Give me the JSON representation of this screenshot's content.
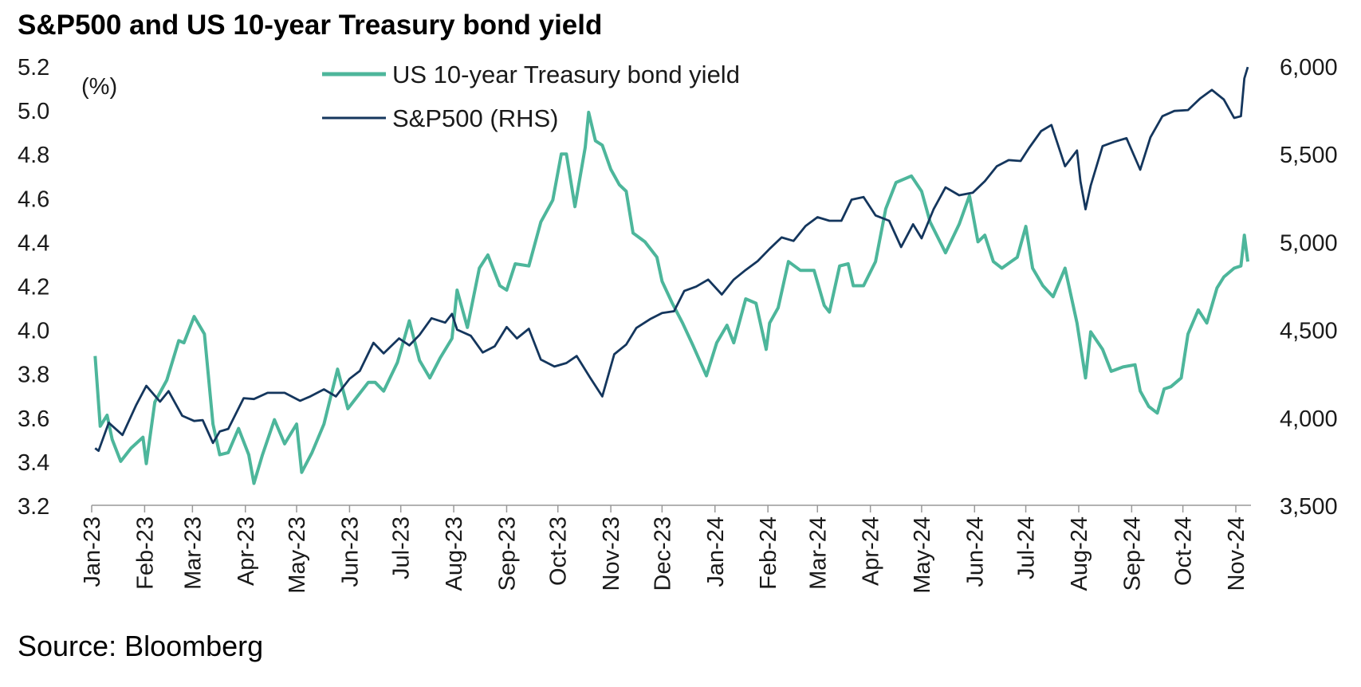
{
  "chart_data": {
    "type": "line",
    "title": "S&P500 and US 10-year Treasury bond yield",
    "source": "Source: Bloomberg",
    "left_axis": {
      "unit_label": "(%)",
      "ylim": [
        3.2,
        5.2
      ],
      "ticks": [
        "3.2",
        "3.4",
        "3.6",
        "3.8",
        "4.0",
        "4.2",
        "4.4",
        "4.6",
        "4.8",
        "5.0",
        "5.2"
      ]
    },
    "right_axis": {
      "ylim": [
        3500,
        6000
      ],
      "ticks": [
        "3,500",
        "4,000",
        "4,500",
        "5,000",
        "5,500",
        "6,000"
      ]
    },
    "x_axis": {
      "range": [
        "2023-01-01",
        "2024-11-08"
      ],
      "tick_labels": [
        "Jan-23",
        "Feb-23",
        "Mar-23",
        "Apr-23",
        "May-23",
        "Jun-23",
        "Jul-23",
        "Aug-23",
        "Sep-23",
        "Oct-23",
        "Nov-23",
        "Dec-23",
        "Jan-24",
        "Feb-24",
        "Mar-24",
        "Apr-24",
        "May-24",
        "Jun-24",
        "Jul-24",
        "Aug-24",
        "Sep-24",
        "Oct-24",
        "Nov-24"
      ],
      "tick_dates": [
        "2023-01-01",
        "2023-02-01",
        "2023-03-01",
        "2023-04-01",
        "2023-05-01",
        "2023-06-01",
        "2023-07-01",
        "2023-08-01",
        "2023-09-01",
        "2023-10-01",
        "2023-11-01",
        "2023-12-01",
        "2024-01-01",
        "2024-02-01",
        "2024-03-01",
        "2024-04-01",
        "2024-05-01",
        "2024-06-01",
        "2024-07-01",
        "2024-08-01",
        "2024-09-01",
        "2024-10-01",
        "2024-11-01"
      ]
    },
    "legend_placement": "top-center",
    "grid": false,
    "series": [
      {
        "name": "US 10-year Treasury bond yield",
        "axis": "left",
        "color": "#4db69b",
        "points": [
          [
            "2023-01-03",
            3.88
          ],
          [
            "2023-01-06",
            3.56
          ],
          [
            "2023-01-10",
            3.61
          ],
          [
            "2023-01-13",
            3.5
          ],
          [
            "2023-01-18",
            3.4
          ],
          [
            "2023-01-24",
            3.46
          ],
          [
            "2023-01-31",
            3.51
          ],
          [
            "2023-02-02",
            3.39
          ],
          [
            "2023-02-07",
            3.67
          ],
          [
            "2023-02-14",
            3.77
          ],
          [
            "2023-02-21",
            3.95
          ],
          [
            "2023-02-24",
            3.94
          ],
          [
            "2023-03-02",
            4.06
          ],
          [
            "2023-03-08",
            3.98
          ],
          [
            "2023-03-13",
            3.57
          ],
          [
            "2023-03-17",
            3.43
          ],
          [
            "2023-03-22",
            3.44
          ],
          [
            "2023-03-28",
            3.55
          ],
          [
            "2023-04-03",
            3.43
          ],
          [
            "2023-04-06",
            3.3
          ],
          [
            "2023-04-11",
            3.43
          ],
          [
            "2023-04-18",
            3.59
          ],
          [
            "2023-04-24",
            3.48
          ],
          [
            "2023-05-01",
            3.57
          ],
          [
            "2023-05-04",
            3.35
          ],
          [
            "2023-05-10",
            3.44
          ],
          [
            "2023-05-17",
            3.57
          ],
          [
            "2023-05-25",
            3.82
          ],
          [
            "2023-05-31",
            3.64
          ],
          [
            "2023-06-05",
            3.69
          ],
          [
            "2023-06-12",
            3.76
          ],
          [
            "2023-06-16",
            3.76
          ],
          [
            "2023-06-21",
            3.72
          ],
          [
            "2023-06-29",
            3.85
          ],
          [
            "2023-07-06",
            4.04
          ],
          [
            "2023-07-12",
            3.86
          ],
          [
            "2023-07-18",
            3.78
          ],
          [
            "2023-07-24",
            3.87
          ],
          [
            "2023-07-31",
            3.96
          ],
          [
            "2023-08-03",
            4.18
          ],
          [
            "2023-08-09",
            4.01
          ],
          [
            "2023-08-16",
            4.28
          ],
          [
            "2023-08-21",
            4.34
          ],
          [
            "2023-08-28",
            4.2
          ],
          [
            "2023-09-01",
            4.18
          ],
          [
            "2023-09-06",
            4.3
          ],
          [
            "2023-09-14",
            4.29
          ],
          [
            "2023-09-21",
            4.49
          ],
          [
            "2023-09-28",
            4.59
          ],
          [
            "2023-10-03",
            4.8
          ],
          [
            "2023-10-06",
            4.8
          ],
          [
            "2023-10-11",
            4.56
          ],
          [
            "2023-10-17",
            4.83
          ],
          [
            "2023-10-19",
            4.99
          ],
          [
            "2023-10-23",
            4.86
          ],
          [
            "2023-10-27",
            4.84
          ],
          [
            "2023-11-01",
            4.73
          ],
          [
            "2023-11-06",
            4.66
          ],
          [
            "2023-11-10",
            4.63
          ],
          [
            "2023-11-14",
            4.44
          ],
          [
            "2023-11-21",
            4.4
          ],
          [
            "2023-11-28",
            4.33
          ],
          [
            "2023-12-01",
            4.22
          ],
          [
            "2023-12-07",
            4.12
          ],
          [
            "2023-12-13",
            4.03
          ],
          [
            "2023-12-19",
            3.93
          ],
          [
            "2023-12-27",
            3.79
          ],
          [
            "2024-01-02",
            3.94
          ],
          [
            "2024-01-08",
            4.02
          ],
          [
            "2024-01-12",
            3.94
          ],
          [
            "2024-01-19",
            4.14
          ],
          [
            "2024-01-25",
            4.12
          ],
          [
            "2024-01-31",
            3.91
          ],
          [
            "2024-02-02",
            4.03
          ],
          [
            "2024-02-07",
            4.1
          ],
          [
            "2024-02-13",
            4.31
          ],
          [
            "2024-02-20",
            4.27
          ],
          [
            "2024-02-28",
            4.27
          ],
          [
            "2024-03-05",
            4.11
          ],
          [
            "2024-03-08",
            4.08
          ],
          [
            "2024-03-14",
            4.29
          ],
          [
            "2024-03-19",
            4.3
          ],
          [
            "2024-03-22",
            4.2
          ],
          [
            "2024-03-28",
            4.2
          ],
          [
            "2024-04-04",
            4.31
          ],
          [
            "2024-04-10",
            4.55
          ],
          [
            "2024-04-16",
            4.67
          ],
          [
            "2024-04-25",
            4.7
          ],
          [
            "2024-05-01",
            4.63
          ],
          [
            "2024-05-06",
            4.49
          ],
          [
            "2024-05-15",
            4.35
          ],
          [
            "2024-05-23",
            4.48
          ],
          [
            "2024-05-29",
            4.61
          ],
          [
            "2024-06-03",
            4.4
          ],
          [
            "2024-06-07",
            4.43
          ],
          [
            "2024-06-12",
            4.31
          ],
          [
            "2024-06-17",
            4.28
          ],
          [
            "2024-06-26",
            4.33
          ],
          [
            "2024-07-01",
            4.47
          ],
          [
            "2024-07-05",
            4.28
          ],
          [
            "2024-07-11",
            4.2
          ],
          [
            "2024-07-17",
            4.15
          ],
          [
            "2024-07-24",
            4.28
          ],
          [
            "2024-07-31",
            4.03
          ],
          [
            "2024-08-05",
            3.78
          ],
          [
            "2024-08-08",
            3.99
          ],
          [
            "2024-08-15",
            3.91
          ],
          [
            "2024-08-20",
            3.81
          ],
          [
            "2024-08-27",
            3.83
          ],
          [
            "2024-09-03",
            3.84
          ],
          [
            "2024-09-06",
            3.72
          ],
          [
            "2024-09-11",
            3.65
          ],
          [
            "2024-09-16",
            3.62
          ],
          [
            "2024-09-20",
            3.73
          ],
          [
            "2024-09-24",
            3.74
          ],
          [
            "2024-09-30",
            3.78
          ],
          [
            "2024-10-04",
            3.98
          ],
          [
            "2024-10-10",
            4.09
          ],
          [
            "2024-10-15",
            4.03
          ],
          [
            "2024-10-21",
            4.19
          ],
          [
            "2024-10-25",
            4.24
          ],
          [
            "2024-10-31",
            4.28
          ],
          [
            "2024-11-04",
            4.29
          ],
          [
            "2024-11-06",
            4.43
          ],
          [
            "2024-11-08",
            4.31
          ]
        ]
      },
      {
        "name": "S&P500 (RHS)",
        "axis": "right",
        "color": "#14365d",
        "points": [
          [
            "2023-01-03",
            3825
          ],
          [
            "2023-01-05",
            3810
          ],
          [
            "2023-01-11",
            3970
          ],
          [
            "2023-01-19",
            3900
          ],
          [
            "2023-01-27",
            4070
          ],
          [
            "2023-02-02",
            4180
          ],
          [
            "2023-02-10",
            4090
          ],
          [
            "2023-02-15",
            4150
          ],
          [
            "2023-02-23",
            4010
          ],
          [
            "2023-03-02",
            3980
          ],
          [
            "2023-03-07",
            3985
          ],
          [
            "2023-03-13",
            3855
          ],
          [
            "2023-03-17",
            3920
          ],
          [
            "2023-03-22",
            3935
          ],
          [
            "2023-03-31",
            4110
          ],
          [
            "2023-04-06",
            4105
          ],
          [
            "2023-04-14",
            4140
          ],
          [
            "2023-04-24",
            4140
          ],
          [
            "2023-05-03",
            4095
          ],
          [
            "2023-05-09",
            4120
          ],
          [
            "2023-05-17",
            4160
          ],
          [
            "2023-05-24",
            4120
          ],
          [
            "2023-06-01",
            4220
          ],
          [
            "2023-06-07",
            4265
          ],
          [
            "2023-06-15",
            4425
          ],
          [
            "2023-06-21",
            4365
          ],
          [
            "2023-06-30",
            4450
          ],
          [
            "2023-07-06",
            4410
          ],
          [
            "2023-07-12",
            4470
          ],
          [
            "2023-07-19",
            4565
          ],
          [
            "2023-07-27",
            4540
          ],
          [
            "2023-07-31",
            4590
          ],
          [
            "2023-08-03",
            4500
          ],
          [
            "2023-08-11",
            4465
          ],
          [
            "2023-08-18",
            4370
          ],
          [
            "2023-08-25",
            4405
          ],
          [
            "2023-09-01",
            4515
          ],
          [
            "2023-09-07",
            4450
          ],
          [
            "2023-09-14",
            4505
          ],
          [
            "2023-09-21",
            4330
          ],
          [
            "2023-09-29",
            4290
          ],
          [
            "2023-10-06",
            4310
          ],
          [
            "2023-10-12",
            4350
          ],
          [
            "2023-10-20",
            4225
          ],
          [
            "2023-10-27",
            4120
          ],
          [
            "2023-11-03",
            4360
          ],
          [
            "2023-11-10",
            4415
          ],
          [
            "2023-11-16",
            4510
          ],
          [
            "2023-11-24",
            4560
          ],
          [
            "2023-12-01",
            4595
          ],
          [
            "2023-12-08",
            4605
          ],
          [
            "2023-12-14",
            4720
          ],
          [
            "2023-12-21",
            4745
          ],
          [
            "2023-12-28",
            4785
          ],
          [
            "2024-01-05",
            4700
          ],
          [
            "2024-01-12",
            4785
          ],
          [
            "2024-01-19",
            4840
          ],
          [
            "2024-01-26",
            4890
          ],
          [
            "2024-02-02",
            4960
          ],
          [
            "2024-02-09",
            5025
          ],
          [
            "2024-02-16",
            5005
          ],
          [
            "2024-02-23",
            5090
          ],
          [
            "2024-03-01",
            5140
          ],
          [
            "2024-03-08",
            5120
          ],
          [
            "2024-03-15",
            5120
          ],
          [
            "2024-03-21",
            5240
          ],
          [
            "2024-03-28",
            5255
          ],
          [
            "2024-04-04",
            5150
          ],
          [
            "2024-04-12",
            5120
          ],
          [
            "2024-04-19",
            4970
          ],
          [
            "2024-04-26",
            5100
          ],
          [
            "2024-05-01",
            5020
          ],
          [
            "2024-05-08",
            5185
          ],
          [
            "2024-05-15",
            5310
          ],
          [
            "2024-05-23",
            5265
          ],
          [
            "2024-05-31",
            5280
          ],
          [
            "2024-06-07",
            5345
          ],
          [
            "2024-06-14",
            5430
          ],
          [
            "2024-06-21",
            5465
          ],
          [
            "2024-06-28",
            5460
          ],
          [
            "2024-07-03",
            5535
          ],
          [
            "2024-07-10",
            5630
          ],
          [
            "2024-07-16",
            5665
          ],
          [
            "2024-07-24",
            5430
          ],
          [
            "2024-07-31",
            5520
          ],
          [
            "2024-08-02",
            5345
          ],
          [
            "2024-08-05",
            5185
          ],
          [
            "2024-08-08",
            5320
          ],
          [
            "2024-08-15",
            5545
          ],
          [
            "2024-08-22",
            5570
          ],
          [
            "2024-08-29",
            5590
          ],
          [
            "2024-09-06",
            5410
          ],
          [
            "2024-09-12",
            5595
          ],
          [
            "2024-09-19",
            5715
          ],
          [
            "2024-09-26",
            5745
          ],
          [
            "2024-10-04",
            5750
          ],
          [
            "2024-10-11",
            5815
          ],
          [
            "2024-10-18",
            5865
          ],
          [
            "2024-10-25",
            5810
          ],
          [
            "2024-10-31",
            5705
          ],
          [
            "2024-11-04",
            5715
          ],
          [
            "2024-11-06",
            5930
          ],
          [
            "2024-11-08",
            5995
          ]
        ]
      }
    ]
  }
}
